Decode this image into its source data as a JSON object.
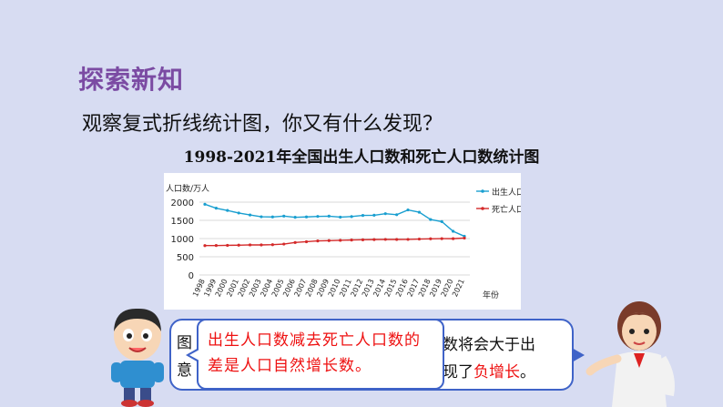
{
  "header": {
    "title": "探索新知"
  },
  "question": "观察复式折线统计图，你又有什么发现？",
  "colors": {
    "birth": "#1a9fd0",
    "death": "#d42a2a",
    "title": "#7b4ba3",
    "bubble_border": "#3f63c8"
  },
  "chart_data": {
    "type": "line",
    "title": "1998-2021年全国出生人口数和死亡人口数统计图",
    "ylabel": "人口数/万人",
    "xlabel": "年份",
    "ylim": [
      0,
      2300
    ],
    "yticks": [
      "2000",
      "1500",
      "1000",
      "500",
      "0"
    ],
    "legend_position": "top-right",
    "x": [
      "1998",
      "1999",
      "2000",
      "2001",
      "2002",
      "2003",
      "2004",
      "2005",
      "2006",
      "2007",
      "2008",
      "2009",
      "2010",
      "2011",
      "2012",
      "2013",
      "2014",
      "2015",
      "2016",
      "2017",
      "2018",
      "2019",
      "2020",
      "2021"
    ],
    "series": [
      {
        "name": "出生人口",
        "color": "#1a9fd0",
        "values": [
          1942,
          1834,
          1771,
          1702,
          1647,
          1599,
          1593,
          1617,
          1584,
          1594,
          1608,
          1615,
          1588,
          1604,
          1635,
          1640,
          1683,
          1655,
          1786,
          1723,
          1523,
          1465,
          1200,
          1062
        ]
      },
      {
        "name": "死亡人口",
        "color": "#d42a2a",
        "values": [
          807,
          809,
          814,
          818,
          826,
          825,
          832,
          849,
          892,
          913,
          935,
          943,
          951,
          960,
          966,
          972,
          977,
          975,
          977,
          986,
          993,
          998,
          997,
          1014
        ]
      }
    ]
  },
  "dialog": {
    "front_text": "出生人口数减去死亡人口数的差是人口自然增长数。",
    "back_left": "图",
    "back_left2": "意",
    "back_line1": "数将会大于出",
    "back_line2_a": "现了",
    "back_line2_b": "负增长",
    "back_line2_c": "。"
  }
}
